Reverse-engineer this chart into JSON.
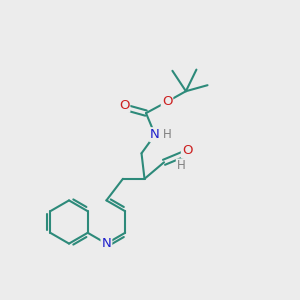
{
  "background_color": "#ececec",
  "bond_color": "#2d8a7a",
  "bond_width": 1.5,
  "atom_colors": {
    "N": "#2020cc",
    "O": "#cc2020",
    "H": "#808080"
  },
  "font_size": 9.5
}
